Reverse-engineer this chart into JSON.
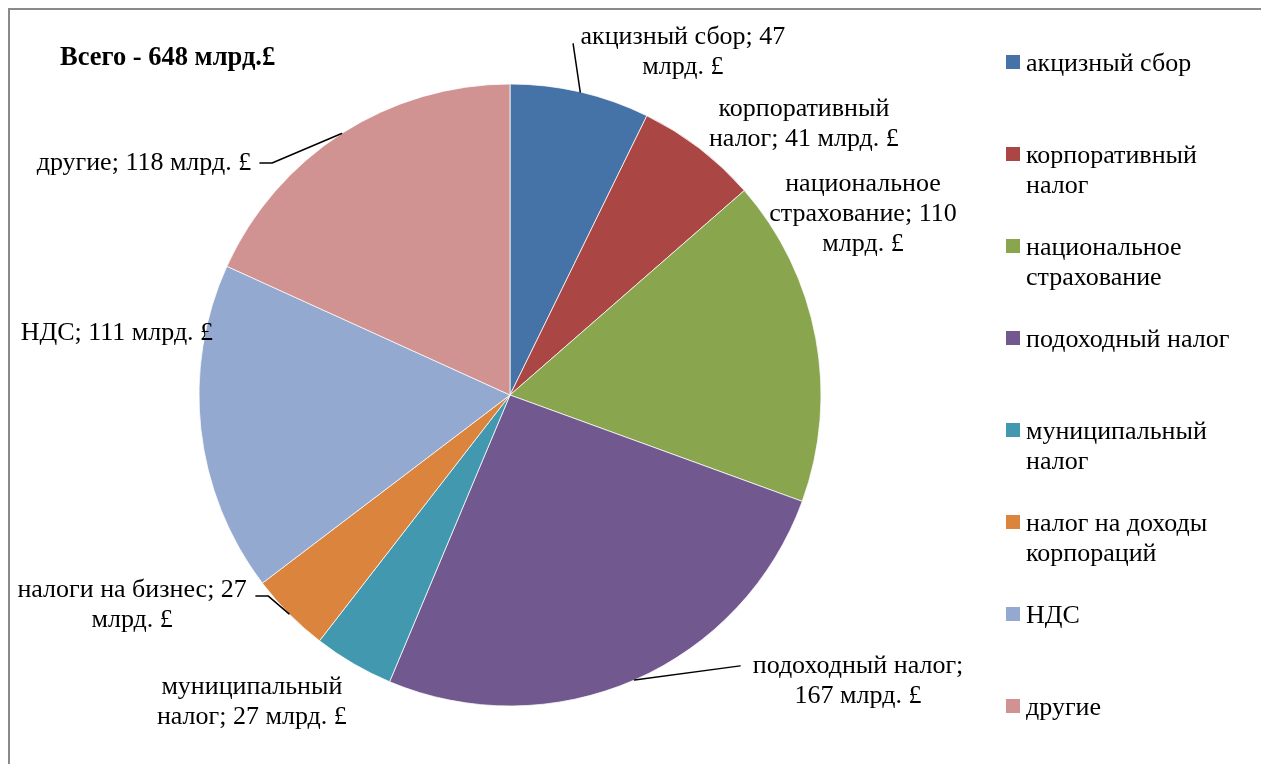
{
  "chart_data": {
    "type": "pie",
    "title": "Всего - 648 млрд.£",
    "categories": [
      "акцизный сбор",
      "корпоративный налог",
      "национальное страхование",
      "подоходный налог",
      "муниципальный налог",
      "налог на доходы корпораций",
      "НДС",
      "другие"
    ],
    "values": [
      47,
      41,
      110,
      167,
      27,
      27,
      111,
      118
    ],
    "colors": [
      "#4572a7",
      "#aa4643",
      "#89a54e",
      "#71588f",
      "#4198af",
      "#db843d",
      "#93a9cf",
      "#d19392"
    ],
    "value_labels": [
      "акцизный сбор; 47 млрд. £",
      "корпоративный налог; 41 млрд. £",
      "национальное страхование; 110 млрд. £",
      "подоходный налог; 167 млрд. £",
      "муниципальный налог; 27 млрд. £",
      "налоги на бизнес; 27 млрд. £",
      "НДС; 111 млрд. £",
      "другие; 118 млрд. £"
    ],
    "legend": "right"
  }
}
